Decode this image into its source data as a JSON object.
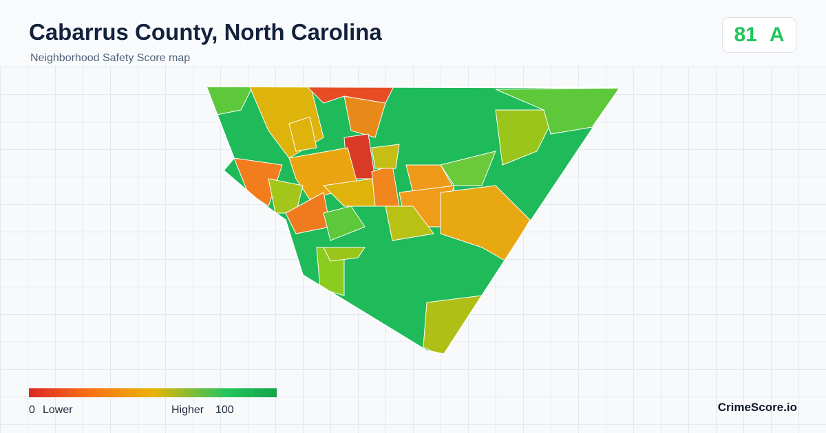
{
  "header": {
    "title": "Cabarrus County, North Carolina",
    "subtitle": "Neighborhood Safety Score map"
  },
  "score": {
    "value": 81,
    "grade": "A"
  },
  "legend": {
    "min": 0,
    "min_label": "Lower",
    "max_label": "Higher",
    "max": 100
  },
  "footer": {
    "brand": "CrimeScore.io"
  }
}
